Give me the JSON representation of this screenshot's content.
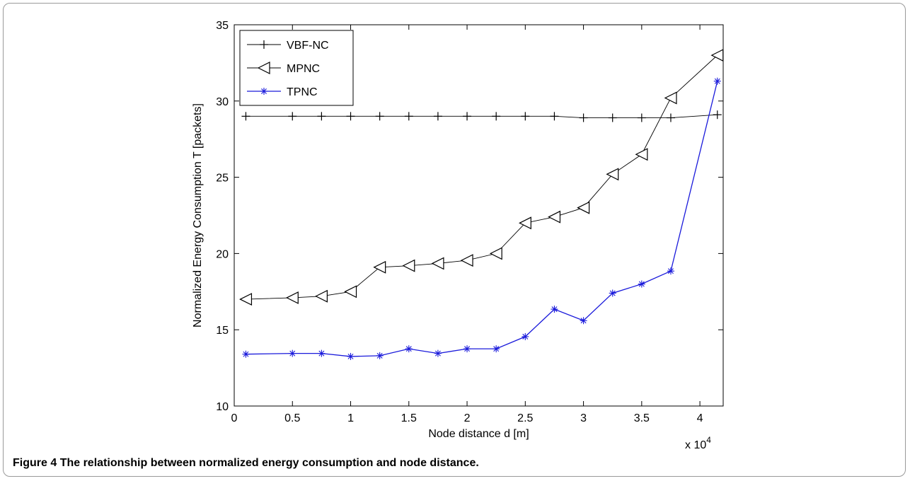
{
  "caption": {
    "label": "Figure 4",
    "text": "The relationship between normalized energy consumption and node distance."
  },
  "chart_data": {
    "type": "line",
    "title": "",
    "xlabel": "Node distance d [m]",
    "ylabel": "Normalized Energy Consumption T [packets]",
    "x_multiplier_label": "x 10",
    "x_multiplier_exp": "4",
    "xlim": [
      0,
      4.2
    ],
    "ylim": [
      10,
      35
    ],
    "xticks": [
      0,
      0.5,
      1,
      1.5,
      2,
      2.5,
      3,
      3.5,
      4
    ],
    "xtick_labels": [
      "0",
      "0.5",
      "1",
      "1.5",
      "2",
      "2.5",
      "3",
      "3.5",
      "4"
    ],
    "yticks": [
      10,
      15,
      20,
      25,
      30,
      35
    ],
    "ytick_labels": [
      "10",
      "15",
      "20",
      "25",
      "30",
      "35"
    ],
    "grid": false,
    "legend_position": "top-left",
    "series": [
      {
        "name": "VBF-NC",
        "color": "#000000",
        "marker": "plus",
        "x": [
          0.1,
          0.5,
          0.75,
          1.0,
          1.25,
          1.5,
          1.75,
          2.0,
          2.25,
          2.5,
          2.75,
          3.0,
          3.25,
          3.5,
          3.75,
          4.15
        ],
        "y": [
          29.0,
          29.0,
          29.0,
          29.0,
          29.0,
          29.0,
          29.0,
          29.0,
          29.0,
          29.0,
          29.0,
          28.9,
          28.9,
          28.9,
          28.9,
          29.1
        ]
      },
      {
        "name": "MPNC",
        "color": "#000000",
        "marker": "triangle-left",
        "x": [
          0.1,
          0.5,
          0.75,
          1.0,
          1.25,
          1.5,
          1.75,
          2.0,
          2.25,
          2.5,
          2.75,
          3.0,
          3.25,
          3.5,
          3.75,
          4.15
        ],
        "y": [
          17.0,
          17.1,
          17.2,
          17.5,
          19.1,
          19.2,
          19.35,
          19.55,
          20.0,
          22.0,
          22.4,
          23.0,
          25.2,
          26.5,
          30.2,
          33.0
        ]
      },
      {
        "name": "TPNC",
        "color": "#1a1adb",
        "marker": "star",
        "x": [
          0.1,
          0.5,
          0.75,
          1.0,
          1.25,
          1.5,
          1.75,
          2.0,
          2.25,
          2.5,
          2.75,
          3.0,
          3.25,
          3.5,
          3.75,
          4.15
        ],
        "y": [
          13.4,
          13.45,
          13.45,
          13.25,
          13.3,
          13.75,
          13.45,
          13.75,
          13.75,
          14.55,
          16.35,
          15.6,
          17.4,
          18.0,
          18.85,
          31.3
        ]
      }
    ]
  }
}
